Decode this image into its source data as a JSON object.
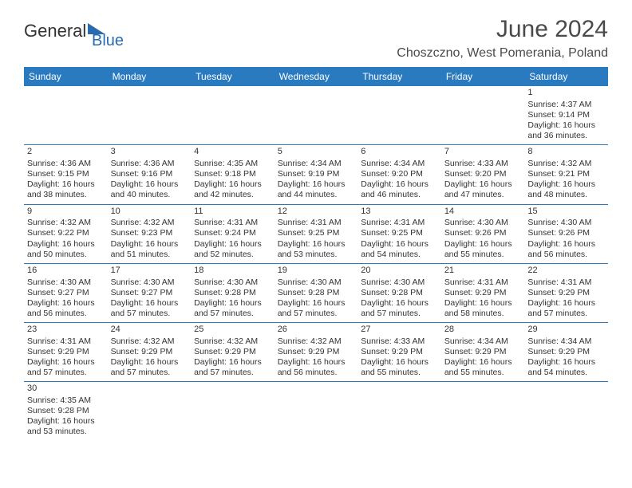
{
  "logo": {
    "general": "General",
    "blue": "Blue"
  },
  "title": "June 2024",
  "location": "Choszczno, West Pomerania, Poland",
  "colors": {
    "header_bg": "#2a7abf",
    "row_divider": "#2a7abf",
    "page_bg": "#ffffff",
    "text": "#333333",
    "title_text": "#4a4a4a"
  },
  "layout": {
    "cols": 7,
    "rows": 6,
    "cell_fontsize": 10.5,
    "header_fontsize": 12,
    "title_fontsize": 30,
    "location_fontsize": 16
  },
  "day_names": [
    "Sunday",
    "Monday",
    "Tuesday",
    "Wednesday",
    "Thursday",
    "Friday",
    "Saturday"
  ],
  "weeks": [
    [
      null,
      null,
      null,
      null,
      null,
      null,
      {
        "n": "1",
        "sunrise": "4:37 AM",
        "sunset": "9:14 PM",
        "dl": "16 hours and 36 minutes."
      }
    ],
    [
      {
        "n": "2",
        "sunrise": "4:36 AM",
        "sunset": "9:15 PM",
        "dl": "16 hours and 38 minutes."
      },
      {
        "n": "3",
        "sunrise": "4:36 AM",
        "sunset": "9:16 PM",
        "dl": "16 hours and 40 minutes."
      },
      {
        "n": "4",
        "sunrise": "4:35 AM",
        "sunset": "9:18 PM",
        "dl": "16 hours and 42 minutes."
      },
      {
        "n": "5",
        "sunrise": "4:34 AM",
        "sunset": "9:19 PM",
        "dl": "16 hours and 44 minutes."
      },
      {
        "n": "6",
        "sunrise": "4:34 AM",
        "sunset": "9:20 PM",
        "dl": "16 hours and 46 minutes."
      },
      {
        "n": "7",
        "sunrise": "4:33 AM",
        "sunset": "9:20 PM",
        "dl": "16 hours and 47 minutes."
      },
      {
        "n": "8",
        "sunrise": "4:32 AM",
        "sunset": "9:21 PM",
        "dl": "16 hours and 48 minutes."
      }
    ],
    [
      {
        "n": "9",
        "sunrise": "4:32 AM",
        "sunset": "9:22 PM",
        "dl": "16 hours and 50 minutes."
      },
      {
        "n": "10",
        "sunrise": "4:32 AM",
        "sunset": "9:23 PM",
        "dl": "16 hours and 51 minutes."
      },
      {
        "n": "11",
        "sunrise": "4:31 AM",
        "sunset": "9:24 PM",
        "dl": "16 hours and 52 minutes."
      },
      {
        "n": "12",
        "sunrise": "4:31 AM",
        "sunset": "9:25 PM",
        "dl": "16 hours and 53 minutes."
      },
      {
        "n": "13",
        "sunrise": "4:31 AM",
        "sunset": "9:25 PM",
        "dl": "16 hours and 54 minutes."
      },
      {
        "n": "14",
        "sunrise": "4:30 AM",
        "sunset": "9:26 PM",
        "dl": "16 hours and 55 minutes."
      },
      {
        "n": "15",
        "sunrise": "4:30 AM",
        "sunset": "9:26 PM",
        "dl": "16 hours and 56 minutes."
      }
    ],
    [
      {
        "n": "16",
        "sunrise": "4:30 AM",
        "sunset": "9:27 PM",
        "dl": "16 hours and 56 minutes."
      },
      {
        "n": "17",
        "sunrise": "4:30 AM",
        "sunset": "9:27 PM",
        "dl": "16 hours and 57 minutes."
      },
      {
        "n": "18",
        "sunrise": "4:30 AM",
        "sunset": "9:28 PM",
        "dl": "16 hours and 57 minutes."
      },
      {
        "n": "19",
        "sunrise": "4:30 AM",
        "sunset": "9:28 PM",
        "dl": "16 hours and 57 minutes."
      },
      {
        "n": "20",
        "sunrise": "4:30 AM",
        "sunset": "9:28 PM",
        "dl": "16 hours and 57 minutes."
      },
      {
        "n": "21",
        "sunrise": "4:31 AM",
        "sunset": "9:29 PM",
        "dl": "16 hours and 58 minutes."
      },
      {
        "n": "22",
        "sunrise": "4:31 AM",
        "sunset": "9:29 PM",
        "dl": "16 hours and 57 minutes."
      }
    ],
    [
      {
        "n": "23",
        "sunrise": "4:31 AM",
        "sunset": "9:29 PM",
        "dl": "16 hours and 57 minutes."
      },
      {
        "n": "24",
        "sunrise": "4:32 AM",
        "sunset": "9:29 PM",
        "dl": "16 hours and 57 minutes."
      },
      {
        "n": "25",
        "sunrise": "4:32 AM",
        "sunset": "9:29 PM",
        "dl": "16 hours and 57 minutes."
      },
      {
        "n": "26",
        "sunrise": "4:32 AM",
        "sunset": "9:29 PM",
        "dl": "16 hours and 56 minutes."
      },
      {
        "n": "27",
        "sunrise": "4:33 AM",
        "sunset": "9:29 PM",
        "dl": "16 hours and 55 minutes."
      },
      {
        "n": "28",
        "sunrise": "4:34 AM",
        "sunset": "9:29 PM",
        "dl": "16 hours and 55 minutes."
      },
      {
        "n": "29",
        "sunrise": "4:34 AM",
        "sunset": "9:29 PM",
        "dl": "16 hours and 54 minutes."
      }
    ],
    [
      {
        "n": "30",
        "sunrise": "4:35 AM",
        "sunset": "9:28 PM",
        "dl": "16 hours and 53 minutes."
      },
      null,
      null,
      null,
      null,
      null,
      null
    ]
  ],
  "labels": {
    "sunrise": "Sunrise: ",
    "sunset": "Sunset: ",
    "daylight": "Daylight: "
  }
}
